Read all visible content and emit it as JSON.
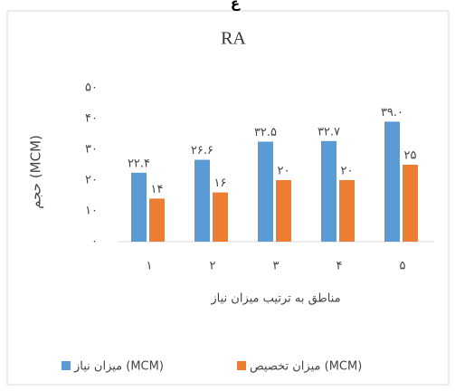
{
  "caption": "ع",
  "chart_data": {
    "type": "bar",
    "title": "RA",
    "y_label": "حجم (MCM)",
    "x_label": "مناطق به ترتیب میزان نیاز",
    "categories": [
      "۱",
      "۲",
      "۳",
      "۴",
      "۵"
    ],
    "series": [
      {
        "name": "میزان نیاز (MCM)",
        "color": "#5b9bd5",
        "values": [
          22.4,
          26.6,
          32.5,
          32.7,
          39.0
        ],
        "value_labels": [
          "۲۲.۴",
          "۲۶.۶",
          "۳۲.۵",
          "۳۲.۷",
          "۳۹.۰"
        ]
      },
      {
        "name": "میزان تخصیص (MCM)",
        "color": "#ed7d31",
        "values": [
          14,
          16,
          20,
          20,
          25
        ],
        "value_labels": [
          "۱۴",
          "۱۶",
          "۲۰",
          "۲۰",
          "۲۵"
        ]
      }
    ],
    "ylim": [
      0,
      50
    ],
    "yticks": [
      {
        "value": 0,
        "label": "۰"
      },
      {
        "value": 10,
        "label": "۱۰"
      },
      {
        "value": 20,
        "label": "۲۰"
      },
      {
        "value": 30,
        "label": "۳۰"
      },
      {
        "value": 40,
        "label": "۴۰"
      },
      {
        "value": 50,
        "label": "۵۰"
      }
    ],
    "grid": false,
    "legend": "bottom"
  }
}
